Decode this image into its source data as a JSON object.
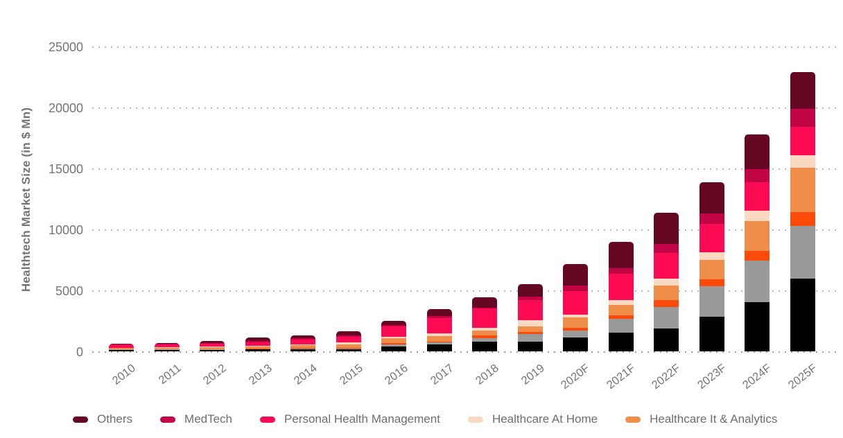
{
  "chart_data": {
    "type": "bar",
    "variant": "stacked-vertical",
    "title": "",
    "xlabel": "",
    "ylabel": "Healthtech Market Size (in $ Mn)",
    "ylim": [
      0,
      25000
    ],
    "yticks": [
      0,
      5000,
      10000,
      15000,
      20000,
      25000
    ],
    "grid": "horizontal-dotted",
    "legend_position": "bottom",
    "categories": [
      "2010",
      "2011",
      "2012",
      "2013",
      "2014",
      "2015",
      "2016",
      "2017",
      "2018",
      "2019",
      "2020F",
      "2021F",
      "2022F",
      "2023F",
      "2024F",
      "2025F"
    ],
    "series_bottom_to_top": [
      {
        "label": "",
        "color": "#000000",
        "values": [
          150,
          150,
          150,
          170,
          200,
          170,
          450,
          570,
          800,
          850,
          1140,
          1540,
          1880,
          2850,
          4040,
          5980
        ]
      },
      {
        "label": "",
        "color": "#9a9a9a",
        "values": [
          20,
          20,
          20,
          30,
          50,
          60,
          120,
          170,
          280,
          620,
          570,
          1140,
          1760,
          2500,
          3420,
          4320
        ]
      },
      {
        "label": "",
        "color": "#fc4a0a",
        "values": [
          20,
          20,
          20,
          50,
          50,
          60,
          120,
          110,
          230,
          170,
          230,
          280,
          570,
          570,
          800,
          1140
        ]
      },
      {
        "label": "Healthcare It & Analytics",
        "color": "#ee8e4a",
        "values": [
          120,
          130,
          150,
          170,
          220,
          280,
          400,
          450,
          400,
          460,
          850,
          850,
          1200,
          1590,
          2450,
          3640
        ]
      },
      {
        "label": "Healthcare At Home",
        "color": "#fbd8c0",
        "values": [
          30,
          30,
          60,
          60,
          100,
          170,
          120,
          230,
          230,
          460,
          280,
          400,
          570,
          680,
          850,
          1020
        ]
      },
      {
        "label": "Personal Health Management",
        "color": "#fc0a54",
        "values": [
          230,
          250,
          230,
          300,
          390,
          510,
          850,
          1250,
          1590,
          1700,
          1880,
          2160,
          2100,
          2280,
          2330,
          2330
        ]
      },
      {
        "label": "MedTech",
        "color": "#c20447",
        "values": [
          50,
          50,
          60,
          80,
          110,
          110,
          120,
          170,
          110,
          280,
          510,
          510,
          740,
          850,
          1080,
          1480
        ]
      },
      {
        "label": "Others",
        "color": "#650723",
        "values": [
          40,
          50,
          180,
          290,
          230,
          290,
          340,
          570,
          850,
          980,
          1760,
          2160,
          2560,
          2560,
          2850,
          3020
        ]
      }
    ],
    "totals": [
      660,
      700,
      870,
      1150,
      1350,
      1650,
      2520,
      3520,
      4490,
      5520,
      7220,
      9040,
      11380,
      13880,
      17820,
      22930
    ]
  },
  "legend": {
    "items": [
      {
        "label": "Others",
        "color": "#650723"
      },
      {
        "label": "MedTech",
        "color": "#c20447"
      },
      {
        "label": "Personal Health Management",
        "color": "#fc0a54"
      },
      {
        "label": "Healthcare At Home",
        "color": "#fbd8c0"
      },
      {
        "label": "Healthcare It & Analytics",
        "color": "#ee8e4a"
      }
    ]
  },
  "colors": {
    "background": "#ffffff",
    "axis_text": "#757575",
    "legend_text": "#6e6e6e",
    "gridline": "#b9b9b9",
    "baseline": "#9f9f9f"
  }
}
